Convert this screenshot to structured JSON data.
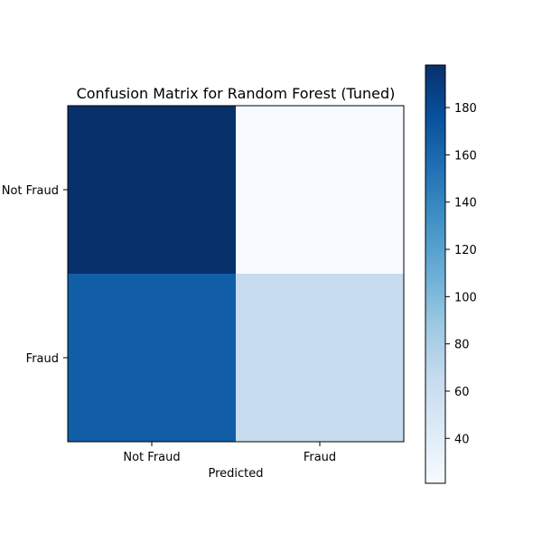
{
  "chart_data": {
    "type": "heatmap",
    "title": "Confusion Matrix for Random Forest (Tuned)",
    "xlabel": "Predicted",
    "ylabel": "",
    "x_categories": [
      "Not Fraud",
      "Fraud"
    ],
    "y_categories": [
      "Not Fraud",
      "Fraud"
    ],
    "values": [
      [
        198,
        21
      ],
      [
        167,
        64
      ]
    ],
    "colormap": "Blues",
    "colorbar": {
      "range": [
        21,
        198
      ],
      "ticks": [
        40,
        60,
        80,
        100,
        120,
        140,
        160,
        180
      ]
    }
  }
}
